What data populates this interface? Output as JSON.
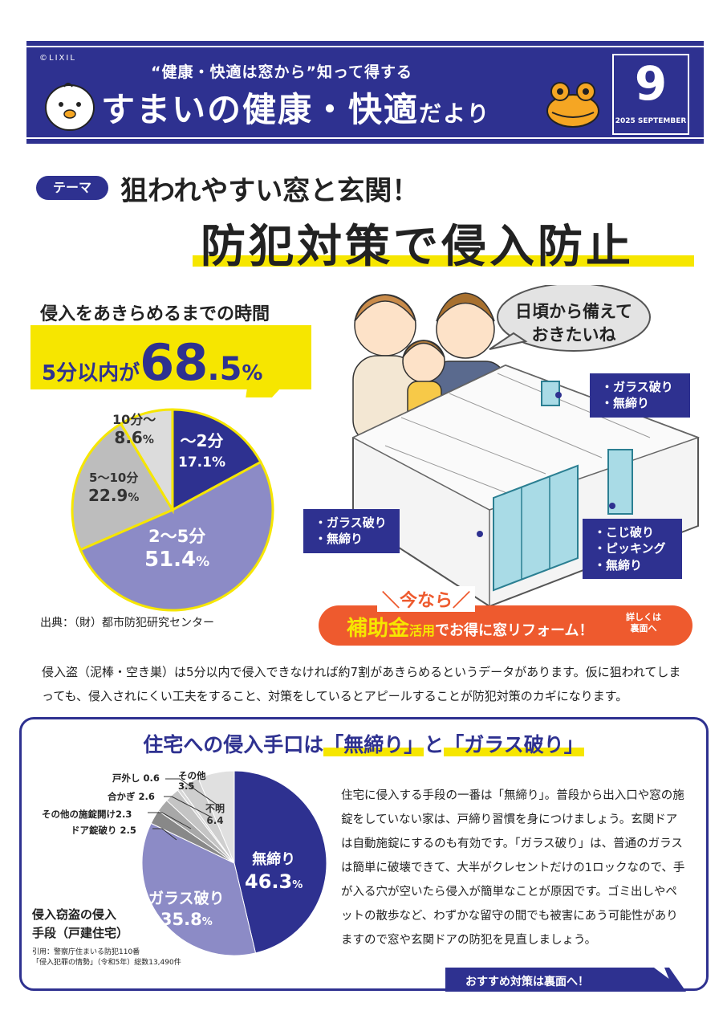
{
  "header": {
    "copyright": "©LIXIL",
    "subtitle": "“健康・快適は窓から”知って得する",
    "title_main": "すまいの健康・快適",
    "title_small": "だより",
    "issue_number": "9",
    "issue_date": "2025 SEPTEMBER",
    "accent_color": "#2e3190"
  },
  "theme": {
    "badge": "テーマ",
    "line1": "狙われやすい窓と玄関！",
    "line2": "防犯対策で侵入防止"
  },
  "timing": {
    "heading": "侵入をあきらめるまでの時間",
    "callout_prefix": "5分以内が",
    "callout_big": "68",
    "callout_decimal": ".5",
    "callout_unit": "%",
    "source": "出典：（財）都市防犯研究センター"
  },
  "illustration": {
    "speech_bubble": "日頃から備えて\nおきたいね",
    "tag_window_top": [
      "・ガラス破り",
      "・無締り"
    ],
    "tag_window_left": [
      "・ガラス破り",
      "・無締り"
    ],
    "tag_door": [
      "・こじ破り",
      "・ピッキング",
      "・無締り"
    ]
  },
  "banner": {
    "imanara": "＼今なら／",
    "hojokin": "補助金",
    "katsuyou": "活用",
    "rest": "でお得に窓リフォーム！",
    "detail": "詳しくは\n裏面へ",
    "color": "#ee5a2e"
  },
  "intro_paragraph": "侵入盗（泥棒・空き巣）は5分以内で侵入できなければ約7割があきらめるというデータがあります。仮に狙われてしまっても、侵入されにくい工夫をすること、対策をしているとアピールすることが防犯対策のカギになります。",
  "method_box": {
    "title_pre": "住宅への侵入手口は",
    "title_hl1": "「無締り」",
    "title_mid": "と",
    "title_hl2": "「ガラス破り」",
    "body": "住宅に侵入する手段の一番は「無締り」。普段から出入口や窓の施錠をしていない家は、戸締り習慣を身につけましょう。玄関ドアは自動施錠にするのも有効です。「ガラス破り」は、普通のガラスは簡単に破壊できて、大半がクレセントだけの1ロックなので、手が入る穴が空いたら侵入が簡単なことが原因です。ゴミ出しやペットの散歩など、わずかな留守の間でも被害にあう可能性がありますので窓や玄関ドアの防犯を見直しましょう。",
    "caption": "侵入窃盗の侵入\n手段（戸建住宅）",
    "source": "引用：警察庁住まいる防犯110番\n「侵入犯罪の情勢」（令和5年）総数13,490件",
    "recommend": "おすすめ対策は裏面へ！"
  },
  "chart_data": [
    {
      "type": "pie",
      "title": "侵入をあきらめるまでの時間",
      "categories": [
        "～2分",
        "2～5分",
        "5～10分",
        "10分～"
      ],
      "values": [
        17.1,
        51.4,
        22.9,
        8.6
      ],
      "unit": "%",
      "colors": [
        "#2e3190",
        "#8c8bc6",
        "#bdbdbd",
        "#dcdcdc"
      ]
    },
    {
      "type": "pie",
      "title": "侵入窃盗の侵入手段（戸建住宅）",
      "categories": [
        "無締り",
        "ガラス破り",
        "ドア錠破り",
        "その他の施錠開け",
        "合かぎ",
        "戸外し",
        "その他",
        "不明"
      ],
      "values": [
        46.3,
        35.8,
        2.5,
        2.3,
        2.6,
        0.6,
        3.5,
        6.4
      ],
      "unit": "%",
      "colors": [
        "#2e3190",
        "#8c8bc6",
        "#888888",
        "#a8a8a8",
        "#c4c4c4",
        "#d8d8d8",
        "#cfcfcf",
        "#e0e0e0"
      ]
    }
  ]
}
